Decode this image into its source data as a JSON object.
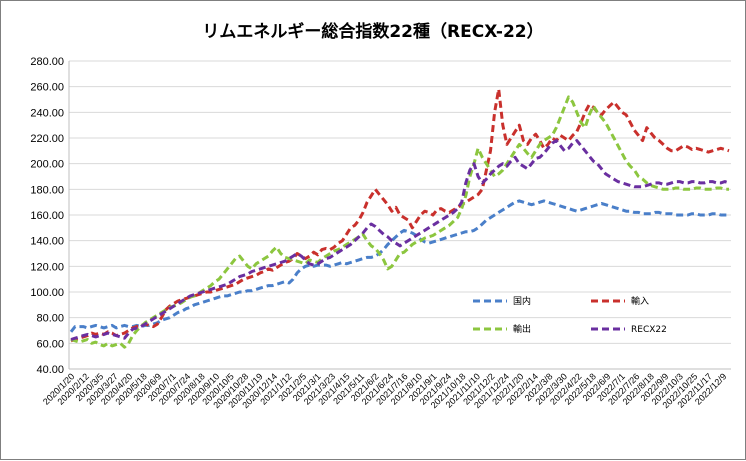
{
  "chart_data": {
    "type": "line",
    "title": "リムエネルギー総合指数22種（RECX-22）",
    "xlabel": "",
    "ylabel": "",
    "ylim": [
      40,
      280
    ],
    "y_ticks": [
      "40.00",
      "60.00",
      "80.00",
      "100.00",
      "120.00",
      "140.00",
      "160.00",
      "180.00",
      "200.00",
      "220.00",
      "240.00",
      "260.00",
      "280.00"
    ],
    "grid": "horizontal",
    "legend_position": "lower-right",
    "x_tick_labels": [
      "2020/1/20",
      "2020/2/12",
      "2020/3/5",
      "2020/3/27",
      "2020/4/20",
      "2020/5/18",
      "2020/6/9",
      "2020/7/1",
      "2020/7/24",
      "2020/8/18",
      "2020/9/10",
      "2020/10/5",
      "2020/10/28",
      "2020/11/19",
      "2020/12/14",
      "2021/1/12",
      "2021/2/5",
      "2021/3/1",
      "2021/3/23",
      "2021/4/15",
      "2021/5/11",
      "2021/6/2",
      "2021/6/24",
      "2021/7/16",
      "2021/8/10",
      "2021/9/1",
      "2021/9/24",
      "2021/10/18",
      "2021/11/10",
      "2021/12/2",
      "2021/12/24",
      "2022/1/20",
      "2022/2/14",
      "2022/3/8",
      "2022/3/30",
      "2022/4/22",
      "2022/5/18",
      "2022/6/9",
      "2022/7/1",
      "2022/7/26",
      "2022/8/18",
      "2022/9/9",
      "2022/10/3",
      "2022/10/25",
      "2022/11/17",
      "2022/12/9"
    ],
    "x_index": [
      0,
      1,
      2,
      3,
      4,
      5,
      6,
      7,
      8,
      9,
      10,
      11,
      12,
      13,
      14,
      15,
      16,
      17,
      18,
      19,
      20,
      21,
      22,
      23,
      24,
      25,
      26,
      27,
      28,
      29,
      30,
      31,
      32,
      33,
      34,
      35,
      36,
      37,
      38,
      39,
      40,
      41,
      42,
      43,
      44,
      45,
      46,
      47,
      48,
      49,
      50,
      51,
      52,
      53,
      54,
      55,
      56,
      57,
      58,
      59,
      60,
      61,
      62,
      63,
      64,
      65,
      66,
      67,
      68,
      69,
      70,
      71,
      72,
      73,
      74,
      75,
      76,
      77,
      78,
      79,
      80,
      81,
      82,
      83,
      84,
      85,
      86,
      87,
      88,
      89,
      90,
      91,
      92,
      93,
      94,
      95,
      96,
      97,
      98,
      99,
      100,
      101,
      102,
      103,
      104,
      105,
      106,
      107,
      108,
      109,
      110,
      111,
      112,
      113,
      114,
      115,
      116,
      117,
      118,
      119,
      120,
      121,
      122,
      123,
      124,
      125,
      126,
      127,
      128,
      129,
      130,
      131,
      132,
      133,
      134,
      135,
      136,
      137,
      138,
      139,
      140,
      141,
      142,
      143,
      144,
      145,
      146,
      147,
      148,
      149,
      150,
      151,
      152,
      153,
      154,
      155,
      156,
      157,
      158,
      159,
      160
    ],
    "series": [
      {
        "name": "国内",
        "color": "#4a7fc9",
        "values": [
          69,
          73,
          73,
          73,
          72,
          73,
          74,
          73,
          72,
          73,
          74,
          72,
          73,
          74,
          73,
          73,
          74,
          73,
          74,
          74,
          75,
          76,
          78,
          79,
          80,
          82,
          84,
          85,
          87,
          88,
          90,
          91,
          92,
          93,
          94,
          95,
          96,
          97,
          97,
          98,
          99,
          100,
          100,
          101,
          101,
          102,
          103,
          104,
          105,
          105,
          106,
          107,
          108,
          107,
          110,
          115,
          118,
          120,
          121,
          120,
          121,
          121,
          121,
          120,
          121,
          122,
          123,
          122,
          123,
          124,
          125,
          126,
          127,
          127,
          128,
          130,
          133,
          137,
          140,
          143,
          146,
          148,
          147,
          146,
          144,
          141,
          139,
          138,
          139,
          140,
          141,
          142,
          143,
          144,
          145,
          146,
          147,
          147,
          148,
          150,
          153,
          156,
          158,
          160,
          162,
          164,
          166,
          168,
          170,
          171,
          170,
          169,
          168,
          169,
          170,
          171,
          170,
          169,
          168,
          167,
          166,
          165,
          164,
          163,
          164,
          165,
          166,
          167,
          168,
          169,
          168,
          167,
          166,
          165,
          164,
          163,
          163,
          162,
          162,
          161,
          161,
          161,
          162,
          162,
          161,
          161,
          161,
          160,
          160,
          160,
          160,
          161,
          161,
          160,
          160,
          160,
          161,
          161,
          160,
          160,
          160
        ]
      },
      {
        "name": "輸入",
        "color": "#c9302c",
        "values": [
          62,
          63,
          64,
          65,
          66,
          68,
          67,
          68,
          67,
          69,
          68,
          66,
          67,
          68,
          70,
          72,
          73,
          74,
          75,
          74,
          73,
          75,
          80,
          86,
          89,
          91,
          93,
          94,
          95,
          96,
          97,
          98,
          99,
          100,
          100,
          101,
          102,
          103,
          104,
          105,
          106,
          108,
          110,
          111,
          112,
          113,
          115,
          116,
          118,
          117,
          119,
          121,
          123,
          124,
          126,
          130,
          128,
          126,
          128,
          131,
          129,
          133,
          134,
          133,
          135,
          138,
          140,
          145,
          150,
          152,
          156,
          162,
          170,
          175,
          180,
          176,
          172,
          168,
          163,
          166,
          160,
          158,
          156,
          150,
          155,
          160,
          163,
          162,
          160,
          164,
          165,
          163,
          162,
          164,
          166,
          168,
          170,
          172,
          174,
          176,
          180,
          195,
          210,
          240,
          258,
          230,
          215,
          220,
          225,
          230,
          218,
          215,
          220,
          223,
          218,
          212,
          215,
          220,
          218,
          222,
          220,
          218,
          222,
          225,
          232,
          240,
          246,
          244,
          240,
          238,
          242,
          245,
          248,
          244,
          240,
          238,
          232,
          226,
          222,
          218,
          228,
          224,
          220,
          218,
          215,
          212,
          210,
          210,
          212,
          214,
          213,
          211,
          212,
          211,
          210,
          209,
          210,
          211,
          212,
          211,
          210
        ]
      },
      {
        "name": "輸出",
        "color": "#8cc63f",
        "values": [
          63,
          62,
          61,
          62,
          63,
          60,
          61,
          59,
          58,
          60,
          58,
          59,
          60,
          57,
          60,
          66,
          70,
          73,
          76,
          78,
          80,
          82,
          84,
          86,
          88,
          89,
          90,
          92,
          94,
          96,
          97,
          99,
          101,
          103,
          105,
          108,
          110,
          114,
          118,
          122,
          126,
          128,
          124,
          120,
          118,
          122,
          124,
          126,
          128,
          132,
          135,
          130,
          127,
          126,
          125,
          124,
          123,
          122,
          125,
          124,
          123,
          126,
          128,
          130,
          132,
          133,
          135,
          137,
          139,
          141,
          143,
          145,
          140,
          136,
          134,
          130,
          125,
          118,
          120,
          125,
          130,
          131,
          134,
          137,
          139,
          140,
          142,
          143,
          144,
          146,
          148,
          150,
          152,
          155,
          158,
          165,
          175,
          190,
          200,
          212,
          205,
          200,
          195,
          190,
          192,
          195,
          200,
          205,
          210,
          215,
          212,
          208,
          205,
          210,
          215,
          218,
          220,
          222,
          228,
          236,
          244,
          252,
          248,
          240,
          232,
          228,
          238,
          245,
          240,
          236,
          232,
          226,
          220,
          214,
          208,
          202,
          198,
          195,
          190,
          188,
          185,
          183,
          182,
          181,
          180,
          180,
          180,
          181,
          181,
          180,
          180,
          180,
          181,
          181,
          180,
          180,
          180,
          181,
          181,
          180,
          180
        ]
      },
      {
        "name": "RECX22",
        "color": "#6a2fa0",
        "values": [
          63,
          64,
          65,
          66,
          67,
          66,
          65,
          66,
          67,
          68,
          67,
          66,
          65,
          64,
          68,
          71,
          72,
          73,
          75,
          77,
          79,
          81,
          83,
          85,
          87,
          89,
          91,
          93,
          95,
          97,
          98,
          99,
          100,
          101,
          102,
          103,
          104,
          105,
          106,
          108,
          110,
          112,
          113,
          114,
          116,
          117,
          118,
          119,
          120,
          121,
          122,
          123,
          124,
          126,
          128,
          130,
          128,
          125,
          122,
          121,
          122,
          124,
          126,
          127,
          129,
          131,
          133,
          135,
          137,
          140,
          143,
          146,
          150,
          153,
          151,
          148,
          145,
          143,
          140,
          138,
          136,
          138,
          140,
          142,
          144,
          146,
          148,
          150,
          152,
          154,
          156,
          158,
          160,
          162,
          165,
          170,
          185,
          195,
          200,
          190,
          185,
          188,
          192,
          195,
          198,
          200,
          198,
          202,
          205,
          200,
          198,
          196,
          200,
          204,
          205,
          208,
          212,
          216,
          218,
          214,
          210,
          212,
          216,
          218,
          214,
          210,
          206,
          202,
          200,
          196,
          192,
          190,
          188,
          186,
          185,
          184,
          183,
          182,
          182,
          182,
          183,
          184,
          185,
          185,
          184,
          184,
          185,
          186,
          186,
          185,
          185,
          186,
          186,
          185,
          185,
          186,
          186,
          185,
          185,
          186,
          185
        ]
      }
    ],
    "chart_data_note": ""
  }
}
